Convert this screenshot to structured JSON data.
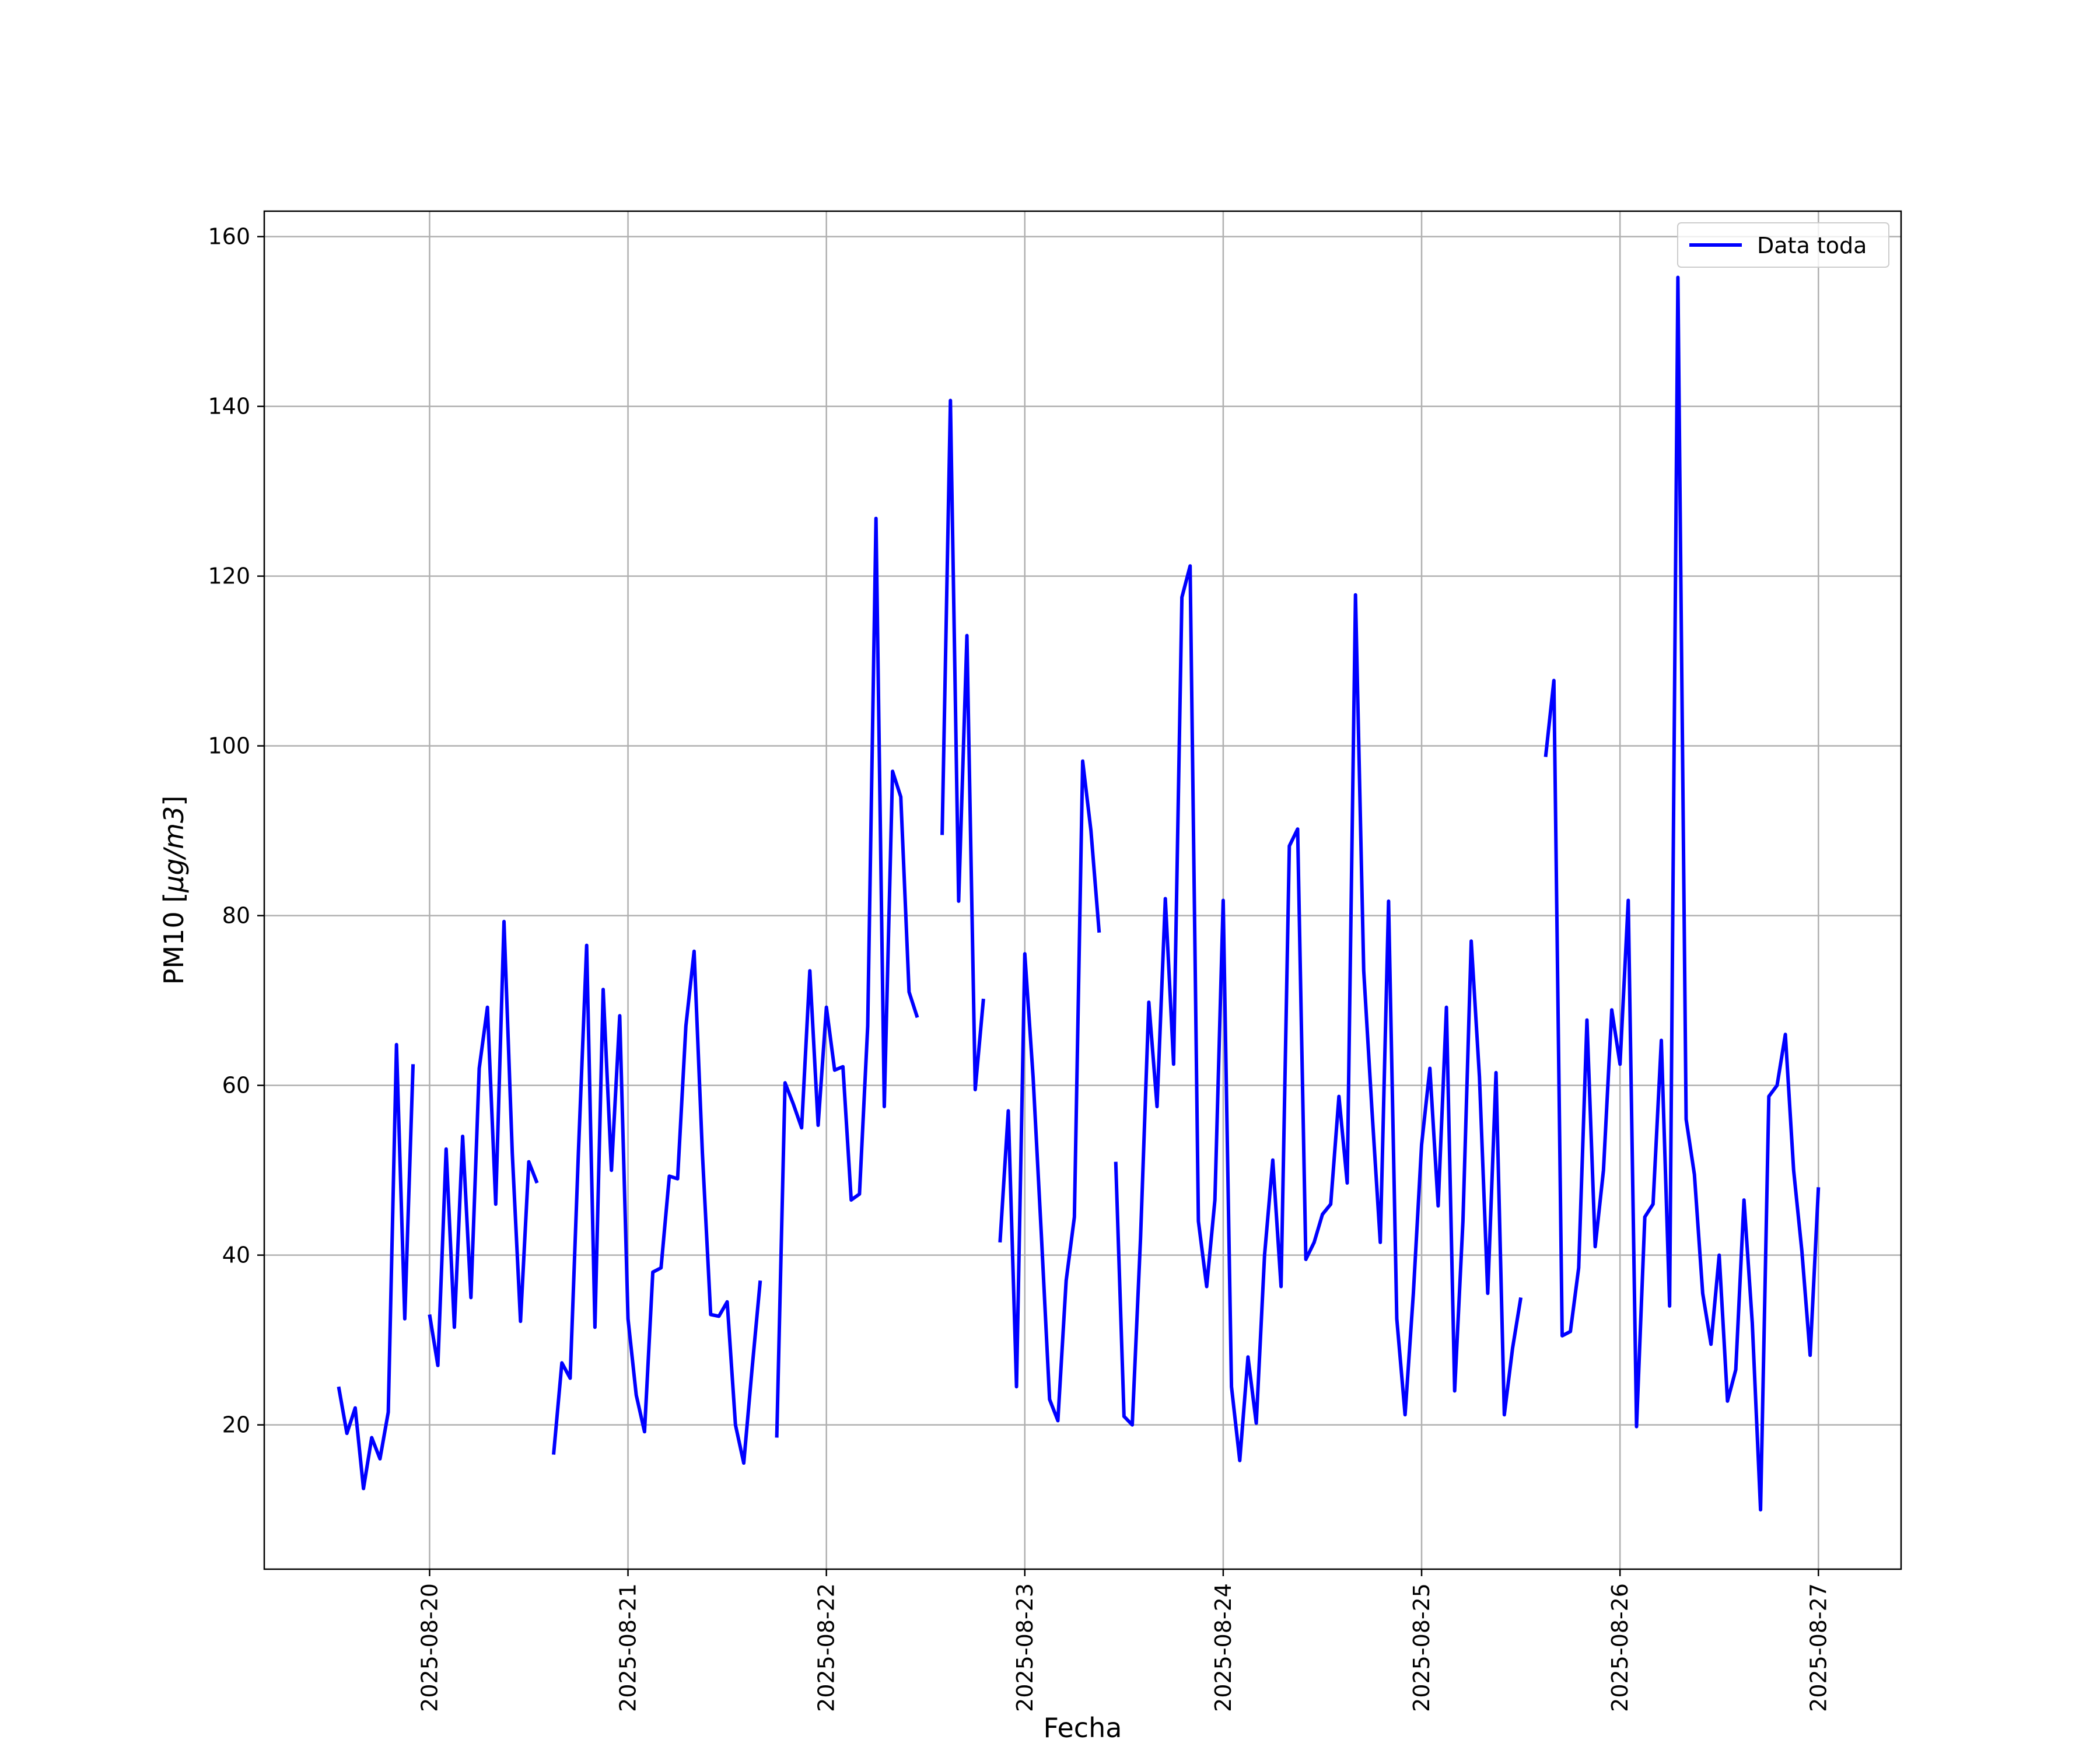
{
  "chart_data": {
    "type": "line",
    "xlabel": "Fecha",
    "ylabel_prefix": "PM10 [",
    "ylabel_unit": "μg/m3",
    "ylabel_suffix": "]",
    "ylim": [
      3,
      163
    ],
    "xlim": [
      "2025-08-19 04:00",
      "2025-08-27 10:00"
    ],
    "yticks": [
      20,
      40,
      60,
      80,
      100,
      120,
      140,
      160
    ],
    "xticks": [
      "2025-08-20",
      "2025-08-21",
      "2025-08-22",
      "2025-08-23",
      "2025-08-24",
      "2025-08-25",
      "2025-08-26",
      "2025-08-27"
    ],
    "grid": true,
    "legend": {
      "position": "top-right",
      "entries": [
        "Data toda"
      ]
    },
    "series": [
      {
        "name": "Data toda",
        "color": "#0000ff",
        "segments": [
          [
            [
              "2025-08-19 13:00",
              24.5
            ],
            [
              "2025-08-19 14:00",
              19
            ],
            [
              "2025-08-19 15:00",
              22
            ],
            [
              "2025-08-19 16:00",
              12.5
            ],
            [
              "2025-08-19 17:00",
              18.5
            ],
            [
              "2025-08-19 18:00",
              16
            ],
            [
              "2025-08-19 19:00",
              21.5
            ],
            [
              "2025-08-19 20:00",
              64.8
            ],
            [
              "2025-08-19 21:00",
              32.5
            ],
            [
              "2025-08-19 22:00",
              62.5
            ]
          ],
          [
            [
              "2025-08-20 00:00",
              33
            ],
            [
              "2025-08-20 01:00",
              27
            ],
            [
              "2025-08-20 02:00",
              52.5
            ],
            [
              "2025-08-20 03:00",
              31.5
            ],
            [
              "2025-08-20 04:00",
              54
            ],
            [
              "2025-08-20 05:00",
              35
            ],
            [
              "2025-08-20 06:00",
              62
            ],
            [
              "2025-08-20 07:00",
              69.2
            ],
            [
              "2025-08-20 08:00",
              46
            ],
            [
              "2025-08-20 09:00",
              79.3
            ],
            [
              "2025-08-20 10:00",
              52
            ],
            [
              "2025-08-20 11:00",
              32.2
            ],
            [
              "2025-08-20 12:00",
              51
            ],
            [
              "2025-08-20 13:00",
              48.5
            ]
          ],
          [
            [
              "2025-08-20 15:00",
              16.5
            ],
            [
              "2025-08-20 16:00",
              27.3
            ],
            [
              "2025-08-20 17:00",
              25.5
            ],
            [
              "2025-08-20 18:00",
              52
            ],
            [
              "2025-08-20 19:00",
              76.5
            ],
            [
              "2025-08-20 20:00",
              31.5
            ],
            [
              "2025-08-20 21:00",
              71.3
            ],
            [
              "2025-08-20 22:00",
              50
            ],
            [
              "2025-08-20 23:00",
              68.2
            ],
            [
              "2025-08-21 00:00",
              32.5
            ],
            [
              "2025-08-21 01:00",
              23.5
            ],
            [
              "2025-08-21 02:00",
              19.2
            ],
            [
              "2025-08-21 03:00",
              38
            ],
            [
              "2025-08-21 04:00",
              38.5
            ],
            [
              "2025-08-21 05:00",
              49.3
            ],
            [
              "2025-08-21 06:00",
              49
            ],
            [
              "2025-08-21 07:00",
              67
            ],
            [
              "2025-08-21 08:00",
              75.8
            ],
            [
              "2025-08-21 09:00",
              52
            ],
            [
              "2025-08-21 10:00",
              33
            ],
            [
              "2025-08-21 11:00",
              32.8
            ],
            [
              "2025-08-21 12:00",
              34.5
            ],
            [
              "2025-08-21 13:00",
              20
            ],
            [
              "2025-08-21 14:00",
              15.5
            ],
            [
              "2025-08-21 15:00",
              26.5
            ],
            [
              "2025-08-21 16:00",
              37
            ]
          ],
          [
            [
              "2025-08-21 18:00",
              18.5
            ],
            [
              "2025-08-21 19:00",
              60.3
            ],
            [
              "2025-08-21 20:00",
              57.8
            ],
            [
              "2025-08-21 21:00",
              55
            ],
            [
              "2025-08-21 22:00",
              73.5
            ],
            [
              "2025-08-21 23:00",
              55.3
            ],
            [
              "2025-08-22 00:00",
              69.2
            ],
            [
              "2025-08-22 01:00",
              61.8
            ],
            [
              "2025-08-22 02:00",
              62.2
            ],
            [
              "2025-08-22 03:00",
              46.5
            ],
            [
              "2025-08-22 04:00",
              47.2
            ],
            [
              "2025-08-22 05:00",
              67
            ],
            [
              "2025-08-22 06:00",
              126.8
            ],
            [
              "2025-08-22 07:00",
              57.5
            ],
            [
              "2025-08-22 08:00",
              97
            ],
            [
              "2025-08-22 09:00",
              94
            ],
            [
              "2025-08-22 10:00",
              71
            ],
            [
              "2025-08-22 11:00",
              68
            ]
          ],
          [
            [
              "2025-08-22 14:00",
              89.5
            ],
            [
              "2025-08-22 15:00",
              140.7
            ],
            [
              "2025-08-22 16:00",
              81.7
            ],
            [
              "2025-08-22 17:00",
              113
            ],
            [
              "2025-08-22 18:00",
              59.5
            ],
            [
              "2025-08-22 19:00",
              70.2
            ]
          ],
          [
            [
              "2025-08-22 21:00",
              41.5
            ],
            [
              "2025-08-22 22:00",
              57
            ],
            [
              "2025-08-22 23:00",
              24.5
            ],
            [
              "2025-08-23 00:00",
              75.5
            ],
            [
              "2025-08-23 01:00",
              61
            ],
            [
              "2025-08-23 02:00",
              42.5
            ],
            [
              "2025-08-23 03:00",
              23
            ],
            [
              "2025-08-23 04:00",
              20.5
            ],
            [
              "2025-08-23 05:00",
              37
            ],
            [
              "2025-08-23 06:00",
              44.5
            ],
            [
              "2025-08-23 07:00",
              98.2
            ],
            [
              "2025-08-23 08:00",
              90
            ],
            [
              "2025-08-23 09:00",
              78
            ]
          ],
          [
            [
              "2025-08-23 11:00",
              51
            ],
            [
              "2025-08-23 12:00",
              21
            ],
            [
              "2025-08-23 13:00",
              20
            ],
            [
              "2025-08-23 14:00",
              42
            ],
            [
              "2025-08-23 15:00",
              69.8
            ],
            [
              "2025-08-23 16:00",
              57.5
            ],
            [
              "2025-08-23 17:00",
              82
            ],
            [
              "2025-08-23 18:00",
              62.5
            ],
            [
              "2025-08-23 19:00",
              117.5
            ],
            [
              "2025-08-23 20:00",
              121.2
            ],
            [
              "2025-08-23 21:00",
              44
            ],
            [
              "2025-08-23 22:00",
              36.3
            ],
            [
              "2025-08-23 23:00",
              46.5
            ],
            [
              "2025-08-24 00:00",
              81.8
            ],
            [
              "2025-08-24 01:00",
              24.5
            ],
            [
              "2025-08-24 02:00",
              15.8
            ],
            [
              "2025-08-24 03:00",
              28
            ],
            [
              "2025-08-24 04:00",
              20.2
            ],
            [
              "2025-08-24 05:00",
              40
            ],
            [
              "2025-08-24 06:00",
              51.2
            ],
            [
              "2025-08-24 07:00",
              36.3
            ],
            [
              "2025-08-24 08:00",
              88.2
            ],
            [
              "2025-08-24 09:00",
              90.2
            ],
            [
              "2025-08-24 10:00",
              39.5
            ],
            [
              "2025-08-24 11:00",
              41.5
            ],
            [
              "2025-08-24 12:00",
              44.8
            ],
            [
              "2025-08-24 13:00",
              46
            ],
            [
              "2025-08-24 14:00",
              58.7
            ],
            [
              "2025-08-24 15:00",
              48.5
            ],
            [
              "2025-08-24 16:00",
              117.8
            ],
            [
              "2025-08-24 17:00",
              73.5
            ],
            [
              "2025-08-24 18:00",
              57
            ],
            [
              "2025-08-24 19:00",
              41.5
            ],
            [
              "2025-08-24 20:00",
              81.7
            ],
            [
              "2025-08-24 21:00",
              32.5
            ],
            [
              "2025-08-24 22:00",
              21.2
            ],
            [
              "2025-08-24 23:00",
              35.5
            ],
            [
              "2025-08-25 00:00",
              53
            ],
            [
              "2025-08-25 01:00",
              62
            ],
            [
              "2025-08-25 02:00",
              45.8
            ],
            [
              "2025-08-25 03:00",
              69.2
            ],
            [
              "2025-08-25 04:00",
              24
            ],
            [
              "2025-08-25 05:00",
              44
            ],
            [
              "2025-08-25 06:00",
              77
            ],
            [
              "2025-08-25 07:00",
              61
            ],
            [
              "2025-08-25 08:00",
              35.5
            ],
            [
              "2025-08-25 09:00",
              61.5
            ],
            [
              "2025-08-25 10:00",
              21.2
            ],
            [
              "2025-08-25 11:00",
              29
            ],
            [
              "2025-08-25 12:00",
              35
            ]
          ],
          [
            [
              "2025-08-25 15:00",
              98.7
            ],
            [
              "2025-08-25 16:00",
              107.7
            ],
            [
              "2025-08-25 17:00",
              30.5
            ],
            [
              "2025-08-25 18:00",
              31
            ],
            [
              "2025-08-25 19:00",
              38.5
            ],
            [
              "2025-08-25 20:00",
              67.7
            ],
            [
              "2025-08-25 21:00",
              41
            ],
            [
              "2025-08-25 22:00",
              50
            ],
            [
              "2025-08-25 23:00",
              68.9
            ],
            [
              "2025-08-26 00:00",
              62.5
            ],
            [
              "2025-08-26 01:00",
              81.8
            ],
            [
              "2025-08-26 02:00",
              19.8
            ],
            [
              "2025-08-26 03:00",
              44.5
            ],
            [
              "2025-08-26 04:00",
              46
            ],
            [
              "2025-08-26 05:00",
              65.3
            ],
            [
              "2025-08-26 06:00",
              34
            ],
            [
              "2025-08-26 07:00",
              155.2
            ],
            [
              "2025-08-26 08:00",
              56
            ],
            [
              "2025-08-26 09:00",
              49.5
            ],
            [
              "2025-08-26 10:00",
              35.5
            ],
            [
              "2025-08-26 11:00",
              29.5
            ],
            [
              "2025-08-26 12:00",
              40
            ],
            [
              "2025-08-26 13:00",
              22.8
            ],
            [
              "2025-08-26 14:00",
              26.5
            ],
            [
              "2025-08-26 15:00",
              46.5
            ],
            [
              "2025-08-26 16:00",
              32
            ],
            [
              "2025-08-26 17:00",
              10
            ],
            [
              "2025-08-26 18:00",
              58.7
            ],
            [
              "2025-08-26 19:00",
              60
            ],
            [
              "2025-08-26 20:00",
              66
            ],
            [
              "2025-08-26 21:00",
              50
            ],
            [
              "2025-08-26 22:00",
              40.5
            ],
            [
              "2025-08-26 23:00",
              28.2
            ],
            [
              "2025-08-27 00:00",
              48
            ]
          ]
        ]
      }
    ]
  }
}
